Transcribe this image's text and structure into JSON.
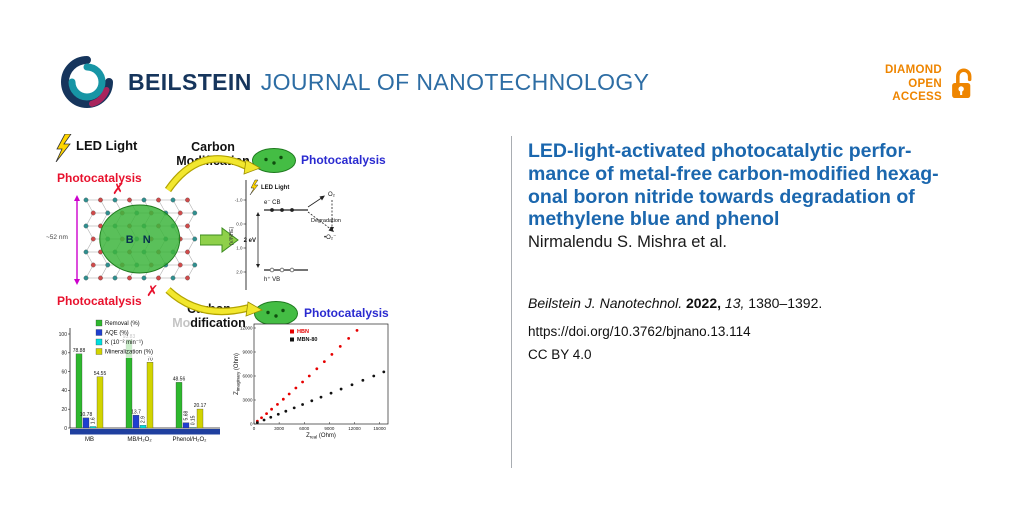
{
  "header": {
    "brand_bold": "BEILSTEIN",
    "brand_rest": "JOURNAL OF NANOTECHNOLOGY",
    "open_access": {
      "line1": "DIAMOND",
      "line2": "OPEN",
      "line3": "ACCESS"
    }
  },
  "article": {
    "title_lines": [
      "LED-light-activated photocatalytic perfor-",
      "mance of metal-free carbon-modified hexag-",
      "onal boron nitride towards degradation of",
      "methylene blue and phenol"
    ],
    "authors": "Nirmalendu S. Mishra et al.",
    "citation": {
      "journal": "Beilstein J. Nanotechnol.",
      "year": "2022,",
      "volume": "13,",
      "pages": "1380–1392."
    },
    "doi": "https://doi.org/10.3762/bjnano.13.114",
    "license": "CC BY 4.0"
  },
  "graphic": {
    "led_light": "LED Light",
    "photocatalysis_no": "Photocatalysis",
    "carbon_modification": [
      "Carbon",
      "Modification"
    ],
    "photocatalysis_yes": "Photocatalysis",
    "bn_label": "B N",
    "size_label": "~52 nm",
    "cross": "✗",
    "band": {
      "led": "LED Light",
      "cb": "e⁻ CB",
      "vb": "h⁺ VB",
      "gap": "2 eV",
      "degradation": "Degradation",
      "o2": "O₂",
      "superoxide": "•O₂⁻",
      "axis_label": "(V/NHE)",
      "axis_ticks": [
        "-1.0",
        "0.0",
        "1.0",
        "2.0"
      ]
    }
  },
  "chart_data": [
    {
      "id": "performance-bars",
      "type": "bar",
      "categories": [
        "MB",
        "MB/H₂O₂",
        "Phenol/H₂O₂"
      ],
      "series": [
        {
          "name": "Removal (%)",
          "color": "#2eb82e",
          "values": [
            78.88,
            93.83,
            48.56
          ]
        },
        {
          "name": "AQE (%)",
          "color": "#1f3fd0",
          "values": [
            10.78,
            13.7,
            5.68
          ]
        },
        {
          "name": "K (10⁻² min⁻¹)",
          "color": "#00dede",
          "values": [
            1.6,
            2.9,
            0.15
          ]
        },
        {
          "name": "Mineralization (%)",
          "color": "#d2d400",
          "values": [
            54.55,
            70,
            20.17
          ]
        }
      ],
      "ylim": [
        0,
        100
      ],
      "yticks": [
        0,
        20,
        40,
        60,
        80,
        100
      ],
      "legend_position": "top",
      "grid": false
    },
    {
      "id": "nyquist-eis",
      "type": "scatter",
      "series": [
        {
          "name": "HBN",
          "color": "#e60000",
          "points": [
            [
              400,
              350
            ],
            [
              900,
              780
            ],
            [
              1500,
              1300
            ],
            [
              2100,
              1850
            ],
            [
              2800,
              2450
            ],
            [
              3500,
              3100
            ],
            [
              4200,
              3750
            ],
            [
              5000,
              4500
            ],
            [
              5800,
              5250
            ],
            [
              6600,
              6000
            ],
            [
              7500,
              6900
            ],
            [
              8400,
              7800
            ],
            [
              9300,
              8700
            ],
            [
              10300,
              9700
            ],
            [
              11300,
              10700
            ],
            [
              12300,
              11700
            ]
          ]
        },
        {
          "name": "MBN-80",
          "color": "#111111",
          "points": [
            [
              400,
              170
            ],
            [
              1200,
              500
            ],
            [
              2000,
              840
            ],
            [
              2900,
              1220
            ],
            [
              3800,
              1600
            ],
            [
              4800,
              2020
            ],
            [
              5800,
              2440
            ],
            [
              6900,
              2900
            ],
            [
              8000,
              3360
            ],
            [
              9200,
              3860
            ],
            [
              10400,
              4370
            ],
            [
              11700,
              4910
            ],
            [
              13000,
              5460
            ],
            [
              14300,
              6000
            ],
            [
              15500,
              6510
            ]
          ]
        }
      ],
      "xlabel": {
        "base": "Z",
        "sub": "real",
        "rest": " (Ohm)"
      },
      "ylabel": {
        "base": "Z",
        "sub": "imaginary",
        "rest": " (Ohm)"
      },
      "xticks": [
        0,
        3000,
        6000,
        9000,
        12000,
        15000
      ],
      "yticks": [
        0,
        3000,
        6000,
        9000,
        12000
      ],
      "xlim": [
        0,
        16000
      ],
      "ylim": [
        0,
        12500
      ],
      "legend_position": "top-left",
      "grid": false
    }
  ],
  "colors": {
    "brand_navy": "#16355c",
    "brand_blue": "#2d6da4",
    "title_blue": "#1b67ae",
    "open_access_orange": "#ee8500",
    "alert_red": "#e8112d",
    "photocatalysis_blue": "#2a2ad0",
    "arrow_yellow": "#f2e72e",
    "block_arrow_green": "#8fd04a",
    "particle_green": "#44bd44",
    "magenta": "#cc00cc",
    "axis_band_blue": "#1f3f9f"
  }
}
